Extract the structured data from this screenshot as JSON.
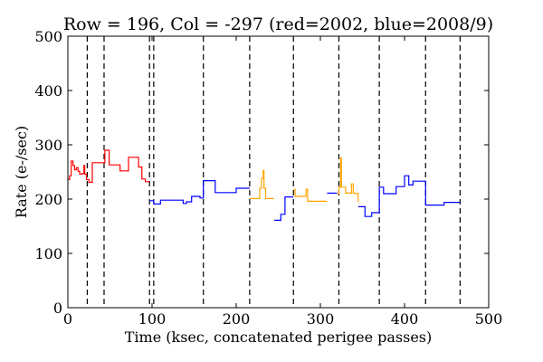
{
  "chart_data": {
    "type": "line",
    "title": "Row = 196, Col = -297 (red=2002, blue=2008/9)",
    "xlabel": "Time (ksec, concatenated perigee passes)",
    "ylabel": "Rate (e-/sec)",
    "xlim": [
      0,
      500
    ],
    "ylim": [
      0,
      500
    ],
    "xticks": [
      0,
      100,
      200,
      300,
      400,
      500
    ],
    "yticks": [
      0,
      100,
      200,
      300,
      400,
      500
    ],
    "grid": false,
    "legend": "none",
    "vlines": [
      23,
      43,
      97,
      102,
      161,
      216,
      268,
      322,
      370,
      425,
      466
    ],
    "series": [
      {
        "color": "#ff0000",
        "step": true,
        "x": [
          0,
          2,
          4,
          6,
          8,
          10,
          12,
          14,
          17,
          19,
          20,
          22,
          25,
          29,
          44,
          49,
          62,
          72,
          84,
          88,
          92,
          97
        ],
        "y": [
          236,
          243,
          270,
          262,
          254,
          258,
          251,
          246,
          247,
          262,
          246,
          236,
          231,
          267,
          290,
          263,
          252,
          277,
          259,
          237,
          232,
          232
        ]
      },
      {
        "color": "#0000ff",
        "step": true,
        "x": [
          97,
          102,
          110,
          137,
          141,
          147,
          157,
          161,
          175,
          200,
          216
        ],
        "y": [
          197,
          191,
          198,
          192,
          195,
          205,
          202,
          234,
          212,
          220,
          220
        ]
      },
      {
        "color": "#ffa500",
        "step": true,
        "x": [
          216,
          228,
          230,
          232,
          233,
          235,
          245
        ],
        "y": [
          201,
          220,
          238,
          253,
          220,
          201,
          201
        ]
      },
      {
        "color": "#0000ff",
        "step": true,
        "x": [
          245,
          253,
          258,
          268
        ],
        "y": [
          161,
          172,
          204,
          204
        ]
      },
      {
        "color": "#ffa500",
        "step": true,
        "x": [
          268,
          270,
          283,
          285,
          308
        ],
        "y": [
          218,
          205,
          218,
          196,
          196
        ]
      },
      {
        "color": "#0000ff",
        "step": true,
        "x": [
          308,
          320
        ],
        "y": [
          211,
          211
        ]
      },
      {
        "color": "#ffa500",
        "step": true,
        "x": [
          320,
          322,
          324,
          325,
          330,
          337,
          339,
          341,
          345
        ],
        "y": [
          210,
          222,
          276,
          222,
          211,
          228,
          211,
          210,
          195
        ]
      },
      {
        "color": "#0000ff",
        "step": true,
        "x": [
          345,
          353,
          361,
          370,
          375,
          390,
          400,
          405,
          410,
          425,
          425,
          447,
          466
        ],
        "y": [
          186,
          168,
          175,
          222,
          210,
          223,
          243,
          226,
          233,
          233,
          189,
          194,
          194
        ]
      }
    ]
  }
}
